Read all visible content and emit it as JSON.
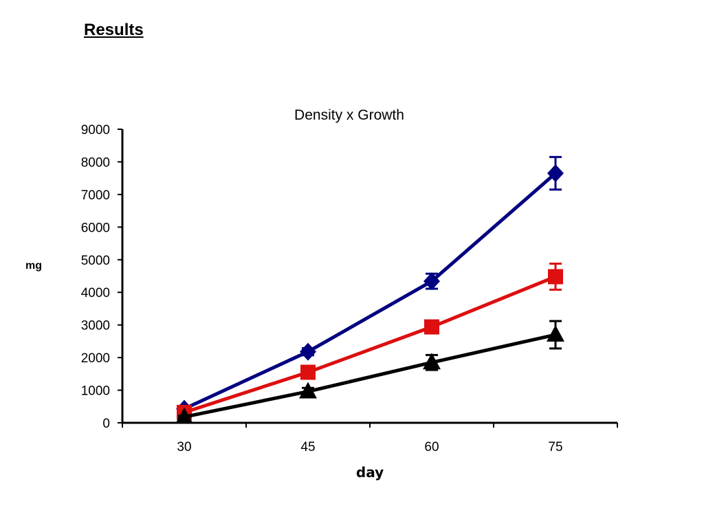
{
  "slide": {
    "title": "Results"
  },
  "chart_data": {
    "type": "line",
    "title": "Density x Growth",
    "xlabel": "day",
    "ylabel": "mg",
    "categories": [
      "30",
      "45",
      "60",
      "75"
    ],
    "ylim": [
      0,
      9000
    ],
    "yticks": [
      0,
      1000,
      2000,
      3000,
      4000,
      5000,
      6000,
      7000,
      8000,
      9000
    ],
    "grid": false,
    "legend": "none",
    "series": [
      {
        "color": "#000080",
        "marker": "diamond",
        "values": [
          430,
          2180,
          4340,
          7650
        ],
        "errors": [
          60,
          110,
          230,
          500
        ]
      },
      {
        "color": "#dd0f0f",
        "marker": "square",
        "values": [
          320,
          1550,
          2940,
          4480
        ],
        "errors": [
          40,
          90,
          160,
          400
        ]
      },
      {
        "color": "#000000",
        "marker": "triangle",
        "values": [
          180,
          960,
          1850,
          2700
        ],
        "errors": [
          30,
          110,
          230,
          420
        ]
      }
    ]
  }
}
